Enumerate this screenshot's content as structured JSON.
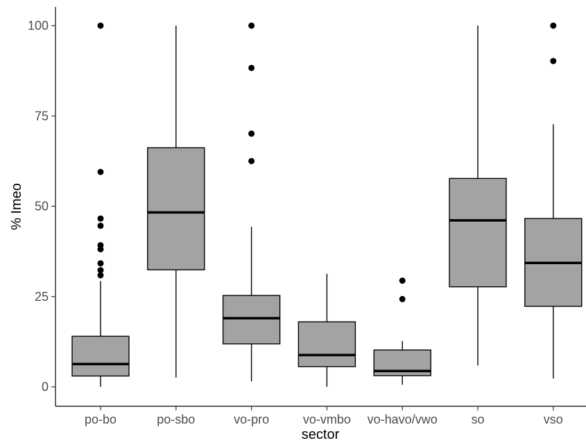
{
  "chart_data": {
    "type": "boxplot",
    "xlabel": "sector",
    "ylabel": "% Imeo",
    "ylim": [
      -3.5,
      105
    ],
    "yticks": [
      0,
      25,
      50,
      75,
      100
    ],
    "categories": [
      "po-bo",
      "po-sbo",
      "vo-pro",
      "vo-vmbo",
      "vo-havo/vwo",
      "so",
      "vso"
    ],
    "boxes": [
      {
        "category": "po-bo",
        "whisker_low": 0,
        "q1": 3,
        "median": 6.3,
        "q3": 14,
        "whisker_high": 29.3,
        "outliers": [
          30.9,
          32.3,
          34.2,
          38.1,
          39.2,
          44.6,
          46.6,
          59.5,
          100
        ]
      },
      {
        "category": "po-sbo",
        "whisker_low": 2.6,
        "q1": 32.4,
        "median": 48.3,
        "q3": 66.2,
        "whisker_high": 100,
        "outliers": []
      },
      {
        "category": "vo-pro",
        "whisker_low": 1.5,
        "q1": 11.9,
        "median": 19,
        "q3": 25.3,
        "whisker_high": 44.3,
        "outliers": [
          62.5,
          70.1,
          88.3,
          100
        ]
      },
      {
        "category": "vo-vmbo",
        "whisker_low": 0,
        "q1": 5.6,
        "median": 8.8,
        "q3": 18,
        "whisker_high": 31.3,
        "outliers": []
      },
      {
        "category": "vo-havo/vwo",
        "whisker_low": 0.6,
        "q1": 3.1,
        "median": 4.4,
        "q3": 10.2,
        "whisker_high": 12.7,
        "outliers": [
          24.3,
          29.4
        ]
      },
      {
        "category": "so",
        "whisker_low": 5.9,
        "q1": 27.7,
        "median": 46.1,
        "q3": 57.7,
        "whisker_high": 100,
        "outliers": []
      },
      {
        "category": "vso",
        "whisker_low": 2.3,
        "q1": 22.3,
        "median": 34.3,
        "q3": 46.6,
        "whisker_high": 72.7,
        "outliers": [
          90.2,
          100
        ]
      }
    ],
    "box_fill": "#a3a3a3",
    "line_color": "#000000",
    "grid": false,
    "legend": "none"
  }
}
